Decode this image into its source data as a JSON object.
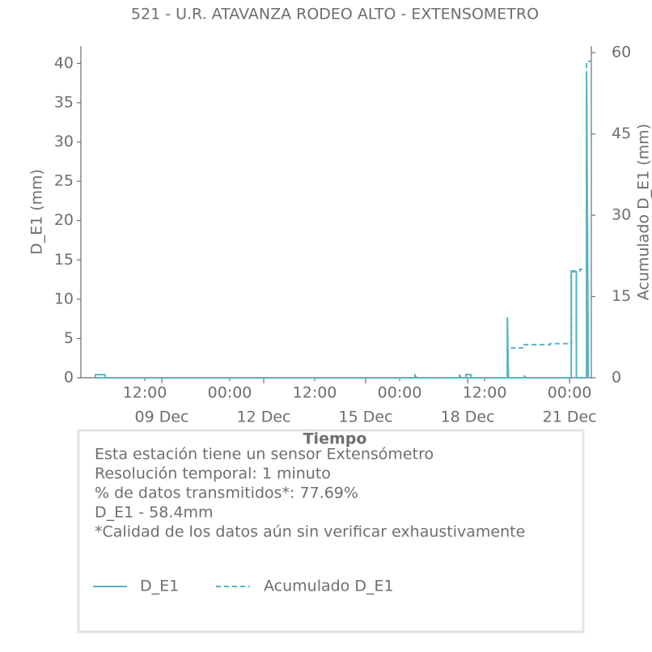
{
  "chart_data": {
    "type": "line",
    "title": "521 - U.R. ATAVANZA RODEO ALTO - EXTENSOMETRO",
    "xlabel": "Tiempo",
    "ylabel": "D_E1 (mm)",
    "y2label": "Acumulado D_E1 (mm)",
    "xlim": [
      6.62,
      21.64
    ],
    "xticks": [
      {
        "value": 9,
        "label": "09 Dec"
      },
      {
        "value": 12,
        "label": "12 Dec"
      },
      {
        "value": 15,
        "label": "15 Dec"
      },
      {
        "value": 18,
        "label": "18 Dec"
      },
      {
        "value": 21,
        "label": "21 Dec"
      }
    ],
    "xminorticks": [
      {
        "value": 8.5,
        "label": "12:00"
      },
      {
        "value": 11,
        "label": "00:00"
      },
      {
        "value": 13.5,
        "label": "12:00"
      },
      {
        "value": 16,
        "label": "00:00"
      },
      {
        "value": 18.5,
        "label": "12:00"
      },
      {
        "value": 21,
        "label": "00:00"
      }
    ],
    "ylim": [
      0,
      42.2
    ],
    "yticks": [
      0,
      5,
      10,
      15,
      20,
      25,
      30,
      35,
      40
    ],
    "y2lim": [
      0,
      61.2
    ],
    "y2ticks": [
      0,
      15,
      30,
      45,
      60
    ],
    "series": [
      {
        "name": "D_E1",
        "color": "#55b4c4",
        "dashed": false,
        "x": [
          7.05,
          7.05,
          7.33,
          7.33,
          16.45,
          16.45,
          16.5,
          17.76,
          17.76,
          17.8,
          17.95,
          17.95,
          18.1,
          18.1,
          19.17,
          19.17,
          19.2,
          19.67,
          19.67,
          19.7,
          21.05,
          21.05,
          21.2,
          21.2,
          21.5,
          21.5,
          21.55
        ],
        "values": [
          0,
          0.4,
          0.4,
          0,
          0,
          0.3,
          0,
          0,
          0.4,
          0,
          0,
          0.4,
          0.4,
          0,
          0,
          7.7,
          0,
          0,
          0.3,
          0,
          0,
          13.5,
          13.5,
          0,
          0,
          38.6,
          0
        ]
      },
      {
        "name": "Acumulado D_E1",
        "color": "#55b4c4",
        "dashed": true,
        "axis": "y2",
        "x": [
          7.05,
          19.17,
          19.17,
          19.67,
          19.67,
          20.43,
          20.43,
          21.05,
          21.05,
          21.3,
          21.3,
          21.5,
          21.5,
          21.62
        ],
        "values": [
          0,
          0,
          5.5,
          5.5,
          6.1,
          6.1,
          6.3,
          6.3,
          19.7,
          19.7,
          20.0,
          20.0,
          58.4,
          58.4
        ]
      }
    ]
  },
  "info_box": {
    "lines": [
      "Esta estación tiene un sensor Extensómetro",
      "Resolución temporal: 1 minuto",
      "% de datos transmitidos*: 77.69%",
      "D_E1 - 58.4mm",
      "*Calidad de los datos aún sin verificar exhaustivamente"
    ]
  }
}
